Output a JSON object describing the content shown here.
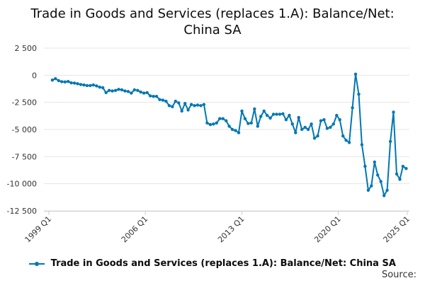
{
  "chart_data": {
    "type": "line",
    "title_line1": "Trade in Goods and Services (replaces 1.A): Balance/Net:",
    "title_line2": "China SA",
    "xlabel": "",
    "ylabel": "",
    "x_ticks": [
      "1999 Q1",
      "2006 Q1",
      "2013 Q1",
      "2020 Q1",
      "2025 Q1"
    ],
    "y_ticks": [
      2500,
      0,
      -2500,
      -5000,
      -7500,
      -10000,
      -12500
    ],
    "y_tick_labels": [
      "2 500",
      "0",
      "-2 500",
      "-5 000",
      "-7 500",
      "-10 000",
      "-12 500"
    ],
    "ylim": [
      -12500,
      2500
    ],
    "x_start": "1999 Q1",
    "frequency": "monthly",
    "grid": true,
    "legend_position": "bottom",
    "color": "#0077b3",
    "series": [
      {
        "name": "Trade in Goods and Services (replaces 1.A): Balance/Net: China SA",
        "values": [
          -450,
          -320,
          -500,
          -600,
          -620,
          -580,
          -700,
          -720,
          -780,
          -860,
          -900,
          -950,
          -950,
          -900,
          -980,
          -1100,
          -1150,
          -1600,
          -1400,
          -1450,
          -1400,
          -1300,
          -1350,
          -1450,
          -1500,
          -1650,
          -1350,
          -1400,
          -1550,
          -1650,
          -1600,
          -1900,
          -1950,
          -1950,
          -2250,
          -2300,
          -2400,
          -2800,
          -2900,
          -2400,
          -2550,
          -3300,
          -2600,
          -3200,
          -2700,
          -2800,
          -2750,
          -2800,
          -2700,
          -4400,
          -4550,
          -4500,
          -4400,
          -4000,
          -4000,
          -4200,
          -4700,
          -5000,
          -5100,
          -5300,
          -3300,
          -4000,
          -4450,
          -4400,
          -3100,
          -4700,
          -3800,
          -3300,
          -3700,
          -3950,
          -3600,
          -3600,
          -3600,
          -3550,
          -4100,
          -3700,
          -4500,
          -5300,
          -3900,
          -5000,
          -4800,
          -5000,
          -4500,
          -5800,
          -5600,
          -4200,
          -4100,
          -4900,
          -4800,
          -4500,
          -3700,
          -4100,
          -5600,
          -6000,
          -6200,
          -3000,
          100,
          -1750,
          -6400,
          -8400,
          -10600,
          -10200,
          -8000,
          -9200,
          -9800,
          -11100,
          -10600,
          -6100,
          -3400,
          -9100,
          -9600,
          -8400,
          -8600
        ]
      }
    ]
  },
  "legend": {
    "label": "Trade in Goods and Services (replaces 1.A): Balance/Net: China SA"
  },
  "source_label": "Source:"
}
